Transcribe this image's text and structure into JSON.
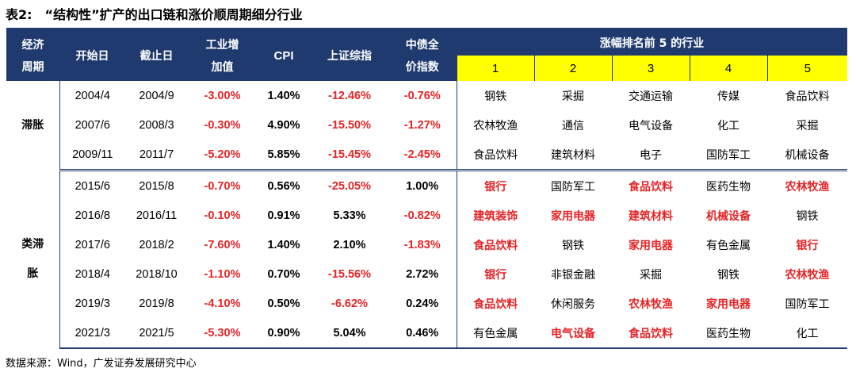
{
  "title": {
    "label": "表2:",
    "text": "“结构性”扩产的出口链和涨价顺周期细分行业"
  },
  "headers": {
    "cycle": [
      "经济",
      "周期"
    ],
    "start": "开始日",
    "end": "截止日",
    "ind_value_added": [
      "工业增",
      "加值"
    ],
    "cpi": "CPI",
    "sse": "上证综指",
    "bond": [
      "中债全",
      "价指数"
    ],
    "top5": "涨幅排名前 5 的行业",
    "ranks": [
      "1",
      "2",
      "3",
      "4",
      "5"
    ]
  },
  "groups": [
    {
      "cycle": [
        "滞胀"
      ],
      "rows": [
        {
          "start": "2004/4",
          "end": "2004/9",
          "iva": "-3.00%",
          "cpi": "1.40%",
          "sse": "-12.46%",
          "bond": "-0.76%",
          "top": [
            {
              "t": "钢铁",
              "hl": false
            },
            {
              "t": "采掘",
              "hl": false
            },
            {
              "t": "交通运输",
              "hl": false
            },
            {
              "t": "传媒",
              "hl": false
            },
            {
              "t": "食品饮料",
              "hl": false
            }
          ]
        },
        {
          "start": "2007/6",
          "end": "2008/3",
          "iva": "-0.30%",
          "cpi": "4.90%",
          "sse": "-15.50%",
          "bond": "-1.27%",
          "top": [
            {
              "t": "农林牧渔",
              "hl": false
            },
            {
              "t": "通信",
              "hl": false
            },
            {
              "t": "电气设备",
              "hl": false
            },
            {
              "t": "化工",
              "hl": false
            },
            {
              "t": "采掘",
              "hl": false
            }
          ]
        },
        {
          "start": "2009/11",
          "end": "2011/7",
          "iva": "-5.20%",
          "cpi": "5.85%",
          "sse": "-15.45%",
          "bond": "-2.45%",
          "top": [
            {
              "t": "食品饮料",
              "hl": false
            },
            {
              "t": "建筑材料",
              "hl": false
            },
            {
              "t": "电子",
              "hl": false
            },
            {
              "t": "国防军工",
              "hl": false
            },
            {
              "t": "机械设备",
              "hl": false
            }
          ]
        }
      ]
    },
    {
      "cycle": [
        "类滞",
        "胀"
      ],
      "rows": [
        {
          "start": "2015/6",
          "end": "2015/8",
          "iva": "-0.70%",
          "cpi": "0.56%",
          "sse": "-25.05%",
          "bond": "1.00%",
          "top": [
            {
              "t": "银行",
              "hl": true
            },
            {
              "t": "国防军工",
              "hl": false
            },
            {
              "t": "食品饮料",
              "hl": true
            },
            {
              "t": "医药生物",
              "hl": false
            },
            {
              "t": "农林牧渔",
              "hl": true
            }
          ]
        },
        {
          "start": "2016/8",
          "end": "2016/11",
          "iva": "-0.10%",
          "cpi": "0.91%",
          "sse": "5.33%",
          "bond": "-0.82%",
          "top": [
            {
              "t": "建筑装饰",
              "hl": true
            },
            {
              "t": "家用电器",
              "hl": true
            },
            {
              "t": "建筑材料",
              "hl": true
            },
            {
              "t": "机械设备",
              "hl": true
            },
            {
              "t": "钢铁",
              "hl": false
            }
          ]
        },
        {
          "start": "2017/6",
          "end": "2018/2",
          "iva": "-7.60%",
          "cpi": "1.40%",
          "sse": "2.10%",
          "bond": "-1.83%",
          "top": [
            {
              "t": "食品饮料",
              "hl": true
            },
            {
              "t": "钢铁",
              "hl": false
            },
            {
              "t": "家用电器",
              "hl": true
            },
            {
              "t": "有色金属",
              "hl": false
            },
            {
              "t": "银行",
              "hl": true
            }
          ]
        },
        {
          "start": "2018/4",
          "end": "2018/10",
          "iva": "-1.10%",
          "cpi": "0.70%",
          "sse": "-15.56%",
          "bond": "2.72%",
          "top": [
            {
              "t": "银行",
              "hl": true
            },
            {
              "t": "非银金融",
              "hl": false
            },
            {
              "t": "采掘",
              "hl": false
            },
            {
              "t": "钢铁",
              "hl": false
            },
            {
              "t": "农林牧渔",
              "hl": true
            }
          ]
        },
        {
          "start": "2019/3",
          "end": "2019/8",
          "iva": "-4.10%",
          "cpi": "0.50%",
          "sse": "-6.62%",
          "bond": "0.24%",
          "top": [
            {
              "t": "食品饮料",
              "hl": true
            },
            {
              "t": "休闲服务",
              "hl": false
            },
            {
              "t": "农林牧渔",
              "hl": true
            },
            {
              "t": "家用电器",
              "hl": true
            },
            {
              "t": "国防军工",
              "hl": false
            }
          ]
        },
        {
          "start": "2021/3",
          "end": "2021/5",
          "iva": "-5.30%",
          "cpi": "0.90%",
          "sse": "5.04%",
          "bond": "0.46%",
          "top": [
            {
              "t": "有色金属",
              "hl": false
            },
            {
              "t": "电气设备",
              "hl": true
            },
            {
              "t": "食品饮料",
              "hl": true
            },
            {
              "t": "医药生物",
              "hl": false
            },
            {
              "t": "化工",
              "hl": false
            }
          ]
        }
      ]
    }
  ],
  "source": "数据来源：Wind，广发证券发展研究中心",
  "colors": {
    "header_bg": "#1f3a6e",
    "rank_bg": "#ffff00",
    "negative": "#e42426",
    "highlight": "#e42426"
  }
}
